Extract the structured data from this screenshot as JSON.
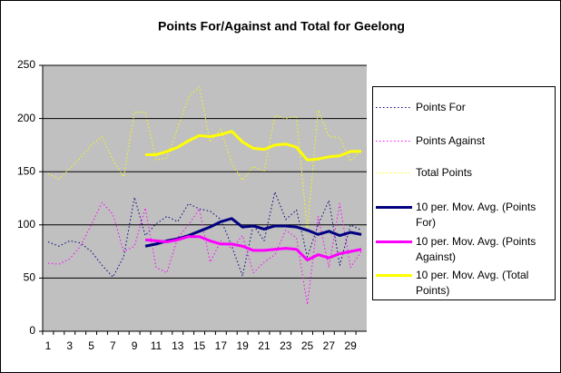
{
  "chart_data": {
    "type": "line",
    "title": "Points For/Against and Total for Geelong",
    "categories": [
      "1",
      null,
      "3",
      null,
      "5",
      null,
      "7",
      null,
      "9",
      null,
      "11",
      null,
      "13",
      null,
      "15",
      null,
      "17",
      null,
      "19",
      null,
      "21",
      null,
      "23",
      null,
      "25",
      null,
      "27",
      null,
      "29",
      null
    ],
    "ylim": [
      0,
      250
    ],
    "yticks": [
      0,
      50,
      100,
      150,
      200,
      250
    ],
    "grid": true,
    "series": [
      {
        "name": "Points For",
        "color": "#000080",
        "style": "dotted",
        "values": [
          84,
          80,
          85,
          83,
          75,
          62,
          51,
          70,
          126,
          90,
          101,
          108,
          103,
          120,
          115,
          113,
          105,
          80,
          52,
          100,
          85,
          131,
          105,
          114,
          70,
          100,
          123,
          62,
          100,
          95
        ]
      },
      {
        "name": "Points Against",
        "color": "#ff00ff",
        "style": "dotted",
        "values": [
          64,
          63,
          68,
          80,
          100,
          121,
          110,
          75,
          80,
          116,
          60,
          55,
          88,
          100,
          115,
          65,
          85,
          78,
          90,
          55,
          65,
          72,
          95,
          88,
          25,
          108,
          60,
          120,
          60,
          75
        ]
      },
      {
        "name": "Total Points",
        "color": "#ffff00",
        "style": "dotted",
        "values": [
          148,
          143,
          153,
          163,
          175,
          183,
          161,
          145,
          206,
          206,
          161,
          163,
          191,
          220,
          230,
          178,
          190,
          158,
          142,
          155,
          150,
          203,
          200,
          202,
          95,
          208,
          183,
          182,
          160,
          170
        ]
      },
      {
        "name": "10 per. Mov. Avg. (Points For)",
        "color": "#000080",
        "style": "solid",
        "values": [
          null,
          null,
          null,
          null,
          null,
          null,
          null,
          null,
          null,
          80,
          82,
          85,
          87,
          90,
          94,
          98,
          103,
          106,
          98,
          99,
          96,
          99,
          99,
          98,
          95,
          91,
          94,
          90,
          93,
          91
        ]
      },
      {
        "name": "10 per. Mov. Avg. (Points Against)",
        "color": "#ff00ff",
        "style": "solid",
        "values": [
          null,
          null,
          null,
          null,
          null,
          null,
          null,
          null,
          null,
          86,
          85,
          84,
          86,
          89,
          89,
          85,
          82,
          82,
          80,
          76,
          76,
          77,
          78,
          77,
          67,
          72,
          69,
          73,
          75,
          77
        ]
      },
      {
        "name": "10 per. Mov. Avg. (Total Points)",
        "color": "#ffff00",
        "style": "solid",
        "values": [
          null,
          null,
          null,
          null,
          null,
          null,
          null,
          null,
          null,
          166,
          166,
          169,
          173,
          179,
          184,
          183,
          185,
          188,
          178,
          172,
          171,
          175,
          176,
          173,
          161,
          162,
          164,
          165,
          169,
          169
        ]
      }
    ]
  }
}
